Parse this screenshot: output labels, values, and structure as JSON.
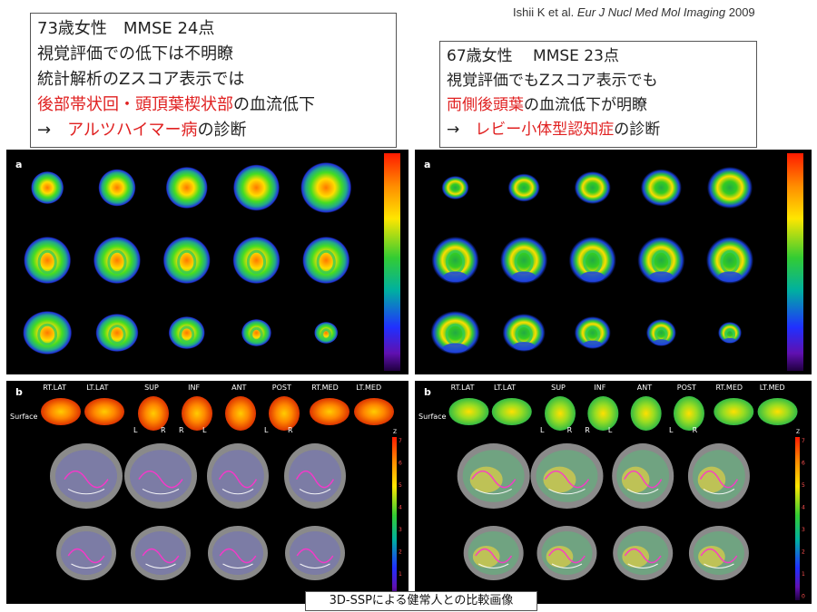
{
  "citation": {
    "authors": "Ishii K et al.",
    "journal": "Eur J Nucl Med Mol Imaging",
    "year": "2009"
  },
  "left_case": {
    "line1": "73歳女性　MMSE 24点",
    "line2": "視覚評価での低下は不明瞭",
    "line3": "統計解析のZスコア表示では",
    "line4_red": "後部帯状回・頭頂葉楔状部",
    "line4_rest": "の血流低下",
    "line5_arrow": "→　",
    "line5_red": "アルツハイマー病",
    "line5_rest": "の診断"
  },
  "right_case": {
    "line1": "67歳女性　 MMSE 23点",
    "line2": "視覚評価でもZスコア表示でも",
    "line3_red": "両側後頭葉",
    "line3_rest": "の血流低下が明瞭",
    "line4_arrow": "→　",
    "line4_red": "レビー小体型認知症",
    "line4_rest": "の診断"
  },
  "panel_a_label": "a",
  "panel_b_label": "b",
  "surface_label": "Surface",
  "view_labels": [
    "RT.LAT",
    "LT.LAT",
    "SUP",
    "INF",
    "ANT",
    "POST",
    "RT.MED",
    "LT.MED"
  ],
  "lr_labels": [
    "L",
    "R",
    "R",
    "L",
    "L",
    "R"
  ],
  "z_label": "Z",
  "z_ticks": [
    "7",
    "6",
    "5",
    "4",
    "3",
    "2",
    "1",
    "0"
  ],
  "caption": "3D-SSPによる健常人との比較画像",
  "colors": {
    "highlight_red": "#e02020",
    "panel_bg": "#000000",
    "box_border": "#555555"
  }
}
